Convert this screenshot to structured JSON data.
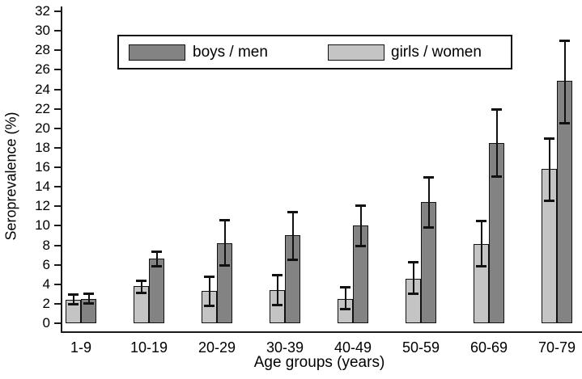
{
  "chart_data": {
    "type": "bar",
    "title": "",
    "xlabel": "Age groups (years)",
    "ylabel": "Seroprevalence (%)",
    "categories": [
      "1-9",
      "10-19",
      "20-29",
      "30-39",
      "40-49",
      "50-59",
      "60-69",
      "70-79"
    ],
    "ylim": [
      0,
      32
    ],
    "ytick_step": 2,
    "grid": false,
    "legend_position": "inside-top",
    "error_bars": true,
    "series": [
      {
        "name": "boys / men",
        "color": "#838383",
        "bar_side": "right",
        "values": [
          2.5,
          6.6,
          8.2,
          9.0,
          10.0,
          12.4,
          18.5,
          24.9
        ],
        "ci_low": [
          2.0,
          5.8,
          5.9,
          6.5,
          7.9,
          9.8,
          15.0,
          20.5
        ],
        "ci_high": [
          3.1,
          7.4,
          10.6,
          11.4,
          12.1,
          15.0,
          22.0,
          29.0
        ]
      },
      {
        "name": "girls / women",
        "color": "#c4c4c4",
        "bar_side": "left",
        "values": [
          2.4,
          3.8,
          3.3,
          3.4,
          2.5,
          4.6,
          8.1,
          15.8
        ],
        "ci_low": [
          1.9,
          3.1,
          1.7,
          1.8,
          1.4,
          3.0,
          5.8,
          12.5
        ],
        "ci_high": [
          3.0,
          4.4,
          4.8,
          5.0,
          3.7,
          6.3,
          10.5,
          19.0
        ]
      }
    ]
  },
  "axes": {
    "y_title": "Seroprevalence (%)",
    "x_title": "Age groups (years)",
    "y_ticks": [
      "0",
      "2",
      "4",
      "6",
      "8",
      "10",
      "12",
      "14",
      "16",
      "18",
      "20",
      "22",
      "24",
      "26",
      "28",
      "30",
      "32"
    ]
  },
  "legend": {
    "items": [
      {
        "label": "boys / men",
        "color": "#838383"
      },
      {
        "label": "girls / women",
        "color": "#c4c4c4"
      }
    ]
  },
  "colors": {
    "background": "#ffffff",
    "bar_border": "#111111",
    "error_bar": "#111111",
    "axis": "#1a1a1a",
    "text": "#000000"
  }
}
